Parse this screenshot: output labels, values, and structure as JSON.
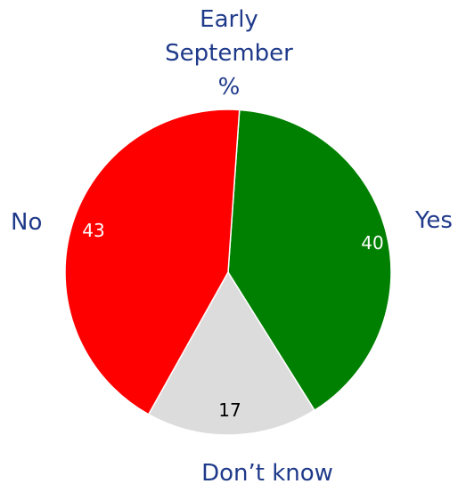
{
  "chart_data": {
    "type": "pie",
    "title_lines": [
      "Early",
      "September",
      "%"
    ],
    "slices": [
      {
        "label": "Yes",
        "value": 40,
        "color": "#008000",
        "label_color": "#ffffff"
      },
      {
        "label": "Don’t know",
        "value": 17,
        "color": "#dcdcdc",
        "label_color": "#000000"
      },
      {
        "label": "No",
        "value": 43,
        "color": "#ff0000",
        "label_color": "#ffffff"
      }
    ],
    "start_angle_deg": 4,
    "direction": "clockwise"
  }
}
